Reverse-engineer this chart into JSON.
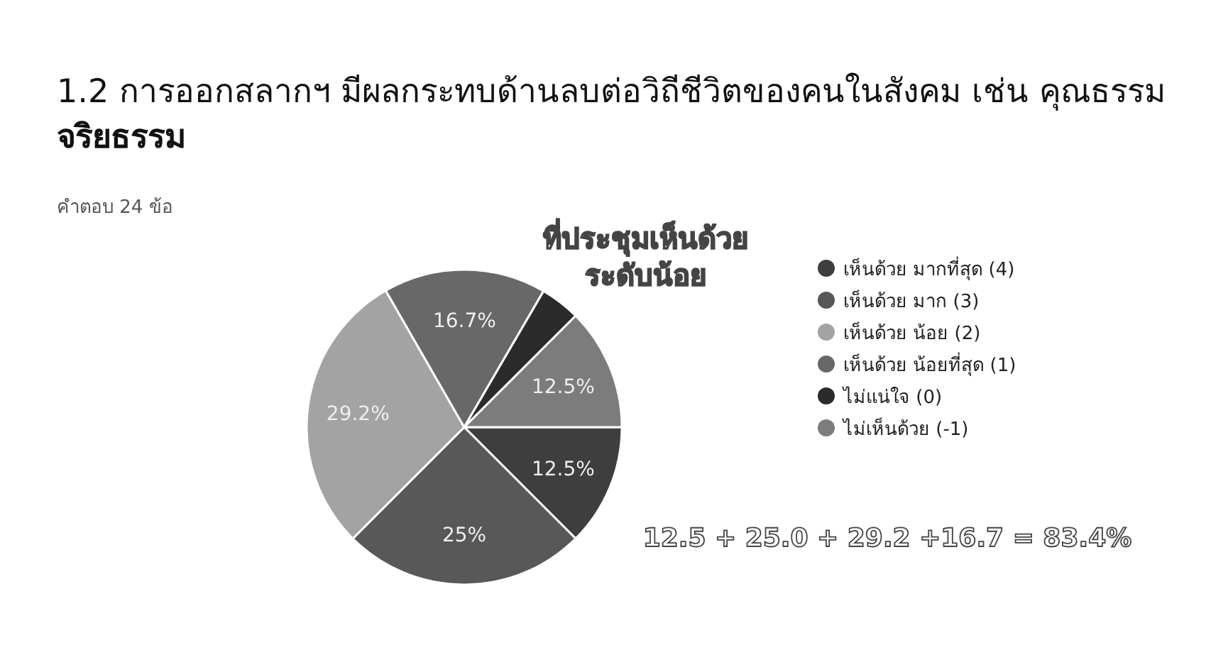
{
  "chart_data": {
    "type": "pie",
    "title": "1.2 การออกสลากฯ มีผลกระทบด้านลบต่อวิถีชีวิตของคนในสังคม เช่น คุณธรรม จริยธรรม",
    "subtitle": "คำตอบ 24 ข้อ",
    "categories": [
      "เห็นด้วย มากที่สุด (4)",
      "เห็นด้วย มาก (3)",
      "เห็นด้วย น้อย (2)",
      "เห็นด้วย น้อยที่สุด (1)",
      "ไม่แน่ใจ (0)",
      "ไม่เห็นด้วย (-1)"
    ],
    "values": [
      12.5,
      25,
      29.2,
      16.7,
      4.1,
      12.5
    ],
    "value_labels": [
      "12.5%",
      "25%",
      "29.2%",
      "16.7%",
      null,
      "12.5%"
    ],
    "colors": [
      "#3e3e3e",
      "#585858",
      "#a3a3a3",
      "#686868",
      "#2b2b2b",
      "#7c7c7c"
    ],
    "legend": "right",
    "annotations": [
      "ที่ประชุมเห็นด้วย\nระดับน้อย",
      "12.5 + 25.0 + 29.2 +16.7 = 83.4%"
    ]
  }
}
